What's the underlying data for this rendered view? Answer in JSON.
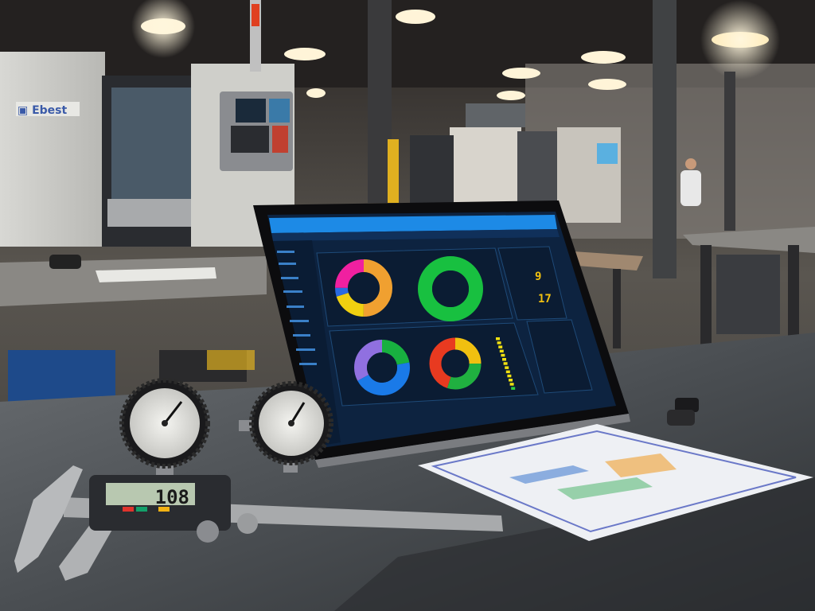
{
  "scene": {
    "description_type": "photo",
    "caliper": {
      "reading": "108",
      "button_colors": [
        "#e0342c",
        "#13a06a",
        "#f2b214"
      ]
    },
    "tablet": {
      "theme_colors": {
        "background": "#0d2340",
        "title_bar": "#1d8ae6",
        "panel": "#0b1c33"
      },
      "donut_charts": [
        {
          "segments": [
            {
              "color": "#f0a030",
              "value": 50
            },
            {
              "color": "#f0d010",
              "value": 20
            },
            {
              "color": "#2a6ae0",
              "value": 5
            },
            {
              "color": "#f020a0",
              "value": 25
            }
          ]
        },
        {
          "segments": [
            {
              "color": "#18c040",
              "value": 100
            }
          ]
        },
        {
          "segments": [
            {
              "color": "#18b040",
              "value": 22
            },
            {
              "color": "#1a7ae8",
              "value": 45
            },
            {
              "color": "#9070e0",
              "value": 33
            }
          ]
        },
        {
          "segments": [
            {
              "color": "#f0c010",
              "value": 25
            },
            {
              "color": "#20b040",
              "value": 30
            },
            {
              "color": "#e83a20",
              "value": 45
            }
          ]
        }
      ],
      "status_indicator_color": "#f0e010"
    },
    "gauges": [
      {
        "label": "pressure-gauge-left"
      },
      {
        "label": "pressure-gauge-right"
      }
    ],
    "document": {
      "type": "report-sheet"
    }
  }
}
